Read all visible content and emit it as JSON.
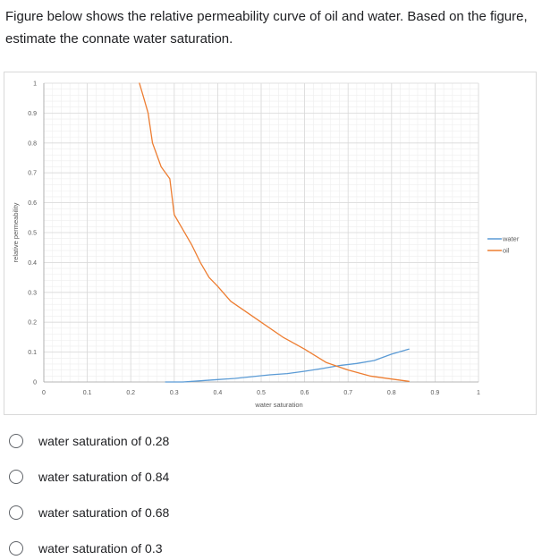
{
  "question": {
    "text": "Figure below shows the relative permeability curve of oil and water. Based on the figure, estimate the connate water saturation."
  },
  "chart_data": {
    "type": "line",
    "title": "",
    "xlabel": "water saturation",
    "ylabel": "relative permeability",
    "xlim": [
      0,
      1
    ],
    "ylim": [
      0,
      1
    ],
    "x_ticks": [
      "0",
      "0.1",
      "0.2",
      "0.3",
      "0.4",
      "0.5",
      "0.6",
      "0.7",
      "0.8",
      "0.9",
      "1"
    ],
    "y_ticks": [
      "0",
      "0.1",
      "0.2",
      "0.3",
      "0.4",
      "0.5",
      "0.6",
      "0.7",
      "0.8",
      "0.9",
      "1"
    ],
    "grid": true,
    "legend_position": "right",
    "series": [
      {
        "name": "water",
        "color": "#5b9bd5",
        "x": [
          0.28,
          0.32,
          0.36,
          0.4,
          0.44,
          0.48,
          0.52,
          0.56,
          0.6,
          0.64,
          0.68,
          0.72,
          0.76,
          0.8,
          0.84
        ],
        "y": [
          0.0,
          0.0,
          0.004,
          0.008,
          0.012,
          0.018,
          0.024,
          0.028,
          0.036,
          0.045,
          0.055,
          0.062,
          0.072,
          0.093,
          0.11
        ]
      },
      {
        "name": "oil",
        "color": "#ed7d31",
        "x": [
          0.22,
          0.23,
          0.24,
          0.25,
          0.27,
          0.29,
          0.3,
          0.32,
          0.34,
          0.36,
          0.38,
          0.4,
          0.43,
          0.46,
          0.5,
          0.55,
          0.6,
          0.65,
          0.7,
          0.75,
          0.8,
          0.84
        ],
        "y": [
          1.0,
          0.95,
          0.9,
          0.8,
          0.72,
          0.68,
          0.56,
          0.51,
          0.46,
          0.4,
          0.35,
          0.32,
          0.27,
          0.24,
          0.2,
          0.15,
          0.11,
          0.065,
          0.04,
          0.02,
          0.01,
          0.002
        ]
      }
    ]
  },
  "options": [
    {
      "label": "water saturation of 0.28"
    },
    {
      "label": "water saturation of 0.84"
    },
    {
      "label": "water saturation of 0.68"
    },
    {
      "label": "water saturation of 0.3"
    }
  ]
}
